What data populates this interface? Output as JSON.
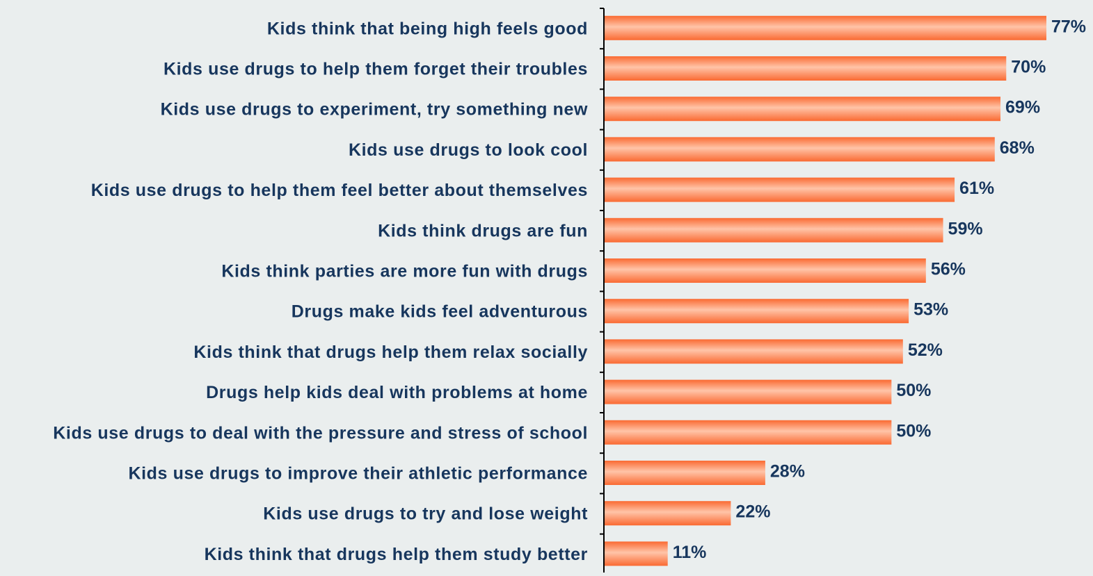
{
  "chart_data": {
    "type": "bar",
    "orientation": "horizontal",
    "title": "",
    "xlabel": "",
    "ylabel": "",
    "xlim": [
      0,
      100
    ],
    "grid": false,
    "categories": [
      "Kids think that being high feels good",
      "Kids use drugs to help them forget their troubles",
      "Kids use drugs to experiment, try something new",
      "Kids use drugs to look cool",
      "Kids use drugs to help them feel better about themselves",
      "Kids think drugs are fun",
      "Kids think parties are more fun with drugs",
      "Drugs make kids feel adventurous",
      "Kids think that drugs help them relax socially",
      "Drugs help kids deal with problems at home",
      "Kids use drugs to deal with the pressure and stress of school",
      "Kids use drugs to improve their athletic performance",
      "Kids use drugs to try and lose weight",
      "Kids think that drugs help them study better"
    ],
    "values": [
      77,
      70,
      69,
      68,
      61,
      59,
      56,
      53,
      52,
      50,
      50,
      28,
      22,
      11
    ],
    "value_labels": [
      "77%",
      "70%",
      "69%",
      "68%",
      "61%",
      "59%",
      "56%",
      "53%",
      "52%",
      "50%",
      "50%",
      "28%",
      "22%",
      "11%"
    ],
    "colors": {
      "bar_light": "#ffc4a8",
      "bar_dark": "#fa6a32",
      "text": "#17365d",
      "axis": "#000000",
      "background": "#eaeeee"
    }
  }
}
